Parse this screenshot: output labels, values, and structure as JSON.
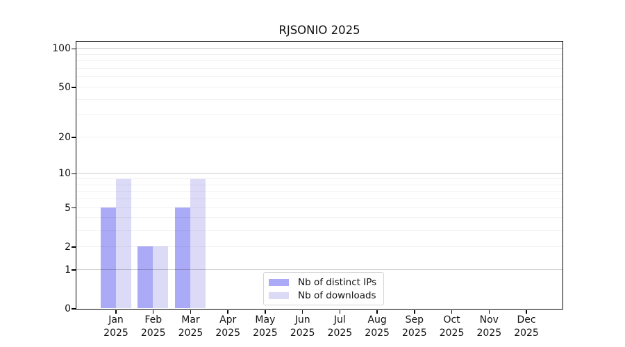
{
  "chart_data": {
    "type": "bar",
    "title": "RJSONIO 2025",
    "categories": [
      "Jan",
      "Feb",
      "Mar",
      "Apr",
      "May",
      "Jun",
      "Jul",
      "Aug",
      "Sep",
      "Oct",
      "Nov",
      "Dec"
    ],
    "year_label": "2025",
    "series": [
      {
        "name": "Nb of distinct IPs",
        "color": "#aaaaf6",
        "values": [
          5,
          2,
          5,
          0,
          0,
          0,
          0,
          0,
          0,
          0,
          0,
          0
        ]
      },
      {
        "name": "Nb of downloads",
        "color": "#dbdbf8",
        "values": [
          9,
          2,
          9,
          0,
          0,
          0,
          0,
          0,
          0,
          0,
          0,
          0
        ]
      }
    ],
    "y_ticks": [
      0,
      1,
      2,
      5,
      10,
      20,
      50,
      100
    ],
    "y_scale": "log1p",
    "ylim": [
      0,
      114
    ],
    "xlabel": "",
    "ylabel": "",
    "grid": "horizontal, major at 1/10/100, minor at log decade steps",
    "legend_position": "bottom-center-inside"
  }
}
